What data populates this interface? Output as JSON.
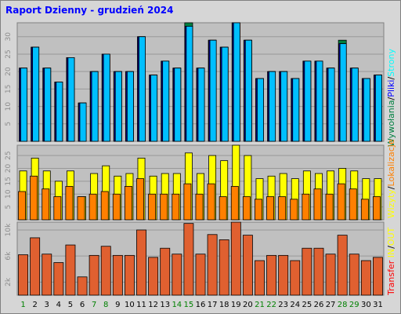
{
  "title": "Raport Dzienny -  grudzień 2024",
  "colors": {
    "background": "#d6d6d6",
    "plot_bg": "#c0c0c0",
    "grid": "#999999",
    "title": "#0000ff",
    "axis_label": "#8c8c8c",
    "day_normal": "#000000",
    "day_weekend": "#008000",
    "wywolania": "#008040",
    "pliki": "#00bfff",
    "strony": "#00ffff",
    "wizyty": "#ffff00",
    "lokalizacje": "#ff8000",
    "transfer": "#e06030",
    "transfer_legend": "#ff0000"
  },
  "legend": {
    "top": [
      {
        "label": "Wywołania",
        "color": "#008040"
      },
      {
        "label": "/",
        "color": "#000000"
      },
      {
        "label": "Pliki",
        "color": "#0000ff"
      },
      {
        "label": "/",
        "color": "#000000"
      },
      {
        "label": "Strony",
        "color": "#00ffff"
      }
    ],
    "middle": [
      {
        "label": "Wizyty",
        "color": "#ffff00"
      },
      {
        "label": "/",
        "color": "#000000"
      },
      {
        "label": "Lokalizacje",
        "color": "#ff8000"
      }
    ],
    "bottom": [
      {
        "label": "Transfer",
        "color": "#ff0000"
      },
      {
        "label": "IN",
        "color": "#ffff00"
      },
      {
        "label": "/",
        "color": "#000000"
      },
      {
        "label": "OUT",
        "color": "#ffff00"
      }
    ]
  },
  "chart_data": [
    {
      "type": "bar",
      "name": "hits-files-pages",
      "categories": [
        "1",
        "2",
        "3",
        "4",
        "5",
        "6",
        "7",
        "8",
        "9",
        "10",
        "11",
        "12",
        "13",
        "14",
        "15",
        "16",
        "17",
        "18",
        "19",
        "20",
        "21",
        "22",
        "23",
        "24",
        "25",
        "26",
        "27",
        "28",
        "29",
        "30",
        "31"
      ],
      "weekend_days": [
        "1",
        "7",
        "8",
        "14",
        "15",
        "21",
        "22",
        "28",
        "29"
      ],
      "ylim": [
        0,
        34
      ],
      "yticks": [
        5,
        10,
        15,
        20,
        25,
        30
      ],
      "series": [
        {
          "name": "Wywołania",
          "values": [
            21,
            27,
            21,
            17,
            24,
            11,
            20,
            25,
            20,
            20,
            30,
            19,
            23,
            21,
            34,
            21,
            29,
            27,
            34,
            29,
            18,
            20,
            20,
            18,
            23,
            23,
            21,
            29,
            21,
            18,
            19
          ]
        },
        {
          "name": "Pliki",
          "values": [
            21,
            27,
            21,
            17,
            24,
            11,
            20,
            25,
            20,
            20,
            30,
            19,
            23,
            21,
            33,
            21,
            29,
            27,
            34,
            29,
            18,
            20,
            20,
            18,
            23,
            23,
            21,
            28,
            21,
            18,
            19
          ]
        },
        {
          "name": "Strony",
          "values": [
            21,
            27,
            21,
            17,
            24,
            11,
            20,
            25,
            20,
            20,
            30,
            19,
            23,
            21,
            33,
            21,
            29,
            27,
            34,
            29,
            18,
            20,
            20,
            18,
            23,
            23,
            21,
            28,
            21,
            18,
            19
          ]
        }
      ]
    },
    {
      "type": "bar",
      "name": "visits-sites",
      "ylim": [
        0,
        29
      ],
      "yticks": [
        5,
        10,
        15,
        20,
        25
      ],
      "series": [
        {
          "name": "Wizyty",
          "values": [
            19,
            24,
            19,
            15,
            19,
            9,
            18,
            21,
            17,
            18,
            24,
            17,
            18,
            18,
            26,
            18,
            25,
            23,
            29,
            25,
            16,
            17,
            18,
            16,
            19,
            18,
            19,
            20,
            19,
            16,
            16
          ]
        },
        {
          "name": "Lokalizacje",
          "values": [
            11,
            17,
            12,
            9,
            13,
            9,
            10,
            11,
            10,
            13,
            16,
            10,
            10,
            10,
            14,
            10,
            14,
            9,
            13,
            9,
            8,
            9,
            9,
            8,
            10,
            12,
            10,
            14,
            12,
            8,
            9
          ]
        }
      ]
    },
    {
      "type": "bar",
      "name": "transfer",
      "ylim": [
        0,
        11200
      ],
      "yticks": [
        2000,
        6000,
        10000
      ],
      "yticklabels": [
        "2k",
        "6k",
        "10k"
      ],
      "series": [
        {
          "name": "Transfer",
          "values": [
            6200,
            8800,
            6300,
            5000,
            7700,
            2800,
            6100,
            7500,
            6100,
            6100,
            10000,
            5800,
            7200,
            6300,
            11000,
            6300,
            9300,
            8500,
            11200,
            9200,
            5300,
            6100,
            6100,
            5300,
            7200,
            7200,
            6300,
            9200,
            6300,
            5300,
            5800
          ]
        }
      ]
    }
  ]
}
